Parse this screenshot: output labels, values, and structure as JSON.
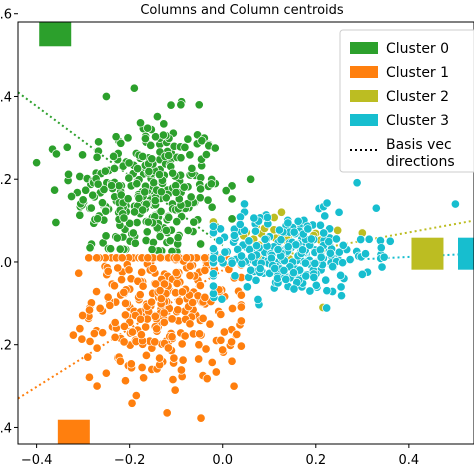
{
  "chart_data": {
    "type": "scatter",
    "title": "Columns and Column centroids",
    "xlabel": "",
    "ylabel": "",
    "xlim": [
      -0.44,
      0.54
    ],
    "ylim": [
      -0.44,
      0.58
    ],
    "x_ticks": [
      "−0.4",
      "−0.2",
      "0.0",
      "0.2",
      "0.4"
    ],
    "x_tick_values": [
      -0.4,
      -0.2,
      0.0,
      0.2,
      0.4
    ],
    "y_ticks": [
      "−0.4",
      "−0.2",
      "0.0",
      "0.2",
      "0.4",
      "0.6"
    ],
    "y_tick_values": [
      -0.4,
      -0.2,
      0.0,
      0.2,
      0.4,
      0.6
    ],
    "grid": false,
    "legend_position": "top-right",
    "series": [
      {
        "name": "Cluster 0",
        "color": "#2ca02c",
        "center": [
          -0.16,
          0.17
        ],
        "spread": [
          0.08,
          0.09
        ],
        "count": 320,
        "outliers": [
          [
            -0.4,
            0.24
          ],
          [
            -0.25,
            0.4
          ],
          [
            -0.19,
            0.42
          ],
          [
            -0.3,
            0.15
          ],
          [
            0.06,
            0.2
          ],
          [
            -0.09,
            0.38
          ]
        ],
        "centroid": [
          -0.36,
          0.56
        ]
      },
      {
        "name": "Cluster 1",
        "color": "#ff7f0e",
        "center": [
          -0.12,
          -0.09
        ],
        "spread": [
          0.08,
          0.1
        ],
        "count": 360,
        "outliers": [
          [
            -0.27,
            -0.3
          ],
          [
            -0.22,
            -0.24
          ],
          [
            -0.17,
            -0.28
          ],
          [
            -0.29,
            -0.23
          ],
          [
            0.02,
            -0.24
          ]
        ],
        "centroid": [
          -0.32,
          -0.42
        ]
      },
      {
        "name": "Cluster 2",
        "color": "#bcbd22",
        "center": [
          0.12,
          0.04
        ],
        "spread": [
          0.07,
          0.05
        ],
        "count": 40,
        "outliers": [
          [
            0.3,
            0.07
          ],
          [
            0.16,
            -0.03
          ]
        ],
        "centroid": [
          0.44,
          0.02
        ]
      },
      {
        "name": "Cluster 3",
        "color": "#17becf",
        "center": [
          0.14,
          0.02
        ],
        "spread": [
          0.09,
          0.05
        ],
        "count": 260,
        "outliers": [
          [
            0.33,
            0.13
          ],
          [
            0.36,
            0.05
          ],
          [
            0.25,
            0.12
          ],
          [
            0.3,
            -0.03
          ],
          [
            0.5,
            0.14
          ]
        ],
        "centroid": [
          0.54,
          0.02
        ]
      }
    ],
    "basis_lines": [
      {
        "color": "#2ca02c",
        "from": [
          -0.44,
          0.41
        ],
        "to": [
          0.0,
          0.04
        ]
      },
      {
        "color": "#ff7f0e",
        "from": [
          -0.44,
          -0.33
        ],
        "to": [
          0.0,
          -0.02
        ]
      },
      {
        "color": "#bcbd22",
        "from": [
          0.0,
          -0.01
        ],
        "to": [
          0.54,
          0.1
        ]
      },
      {
        "color": "#17becf",
        "from": [
          0.0,
          -0.01
        ],
        "to": [
          0.54,
          0.02
        ]
      }
    ],
    "legend": [
      {
        "label": "Cluster 0",
        "color": "#2ca02c",
        "kind": "patch"
      },
      {
        "label": "Cluster 1",
        "color": "#ff7f0e",
        "kind": "patch"
      },
      {
        "label": "Cluster 2",
        "color": "#bcbd22",
        "kind": "patch"
      },
      {
        "label": "Cluster 3",
        "color": "#17becf",
        "kind": "patch"
      },
      {
        "label": "Basis vec\ndirections",
        "color": "#000000",
        "kind": "dotted"
      }
    ]
  }
}
